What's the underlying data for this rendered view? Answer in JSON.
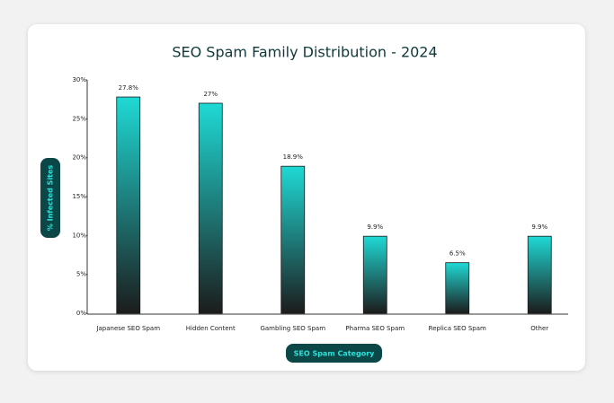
{
  "chart_data": {
    "type": "bar",
    "title": "SEO Spam Family Distribution - 2024",
    "x_label": "SEO Spam Category",
    "y_label": "% Infected Sites",
    "categories": [
      "Japanese SEO Spam",
      "Hidden Content",
      "Gambling SEO Spam",
      "Pharma SEO Spam",
      "Replica SEO Spam",
      "Other"
    ],
    "values": [
      27.8,
      27,
      18.9,
      9.9,
      6.5,
      9.9
    ],
    "value_labels": [
      "27.8%",
      "27%",
      "18.9%",
      "9.9%",
      "6.5%",
      "9.9%"
    ],
    "color": "#1fd9d5",
    "ylim": [
      0,
      30
    ],
    "yticks": [
      {
        "value": 0,
        "label": "0%"
      },
      {
        "value": 5,
        "label": "5%"
      },
      {
        "value": 10,
        "label": "10%"
      },
      {
        "value": 15,
        "label": "15%"
      },
      {
        "value": 20,
        "label": "20%"
      },
      {
        "value": 25,
        "label": "25%"
      },
      {
        "value": 30,
        "label": "30%"
      }
    ],
    "grid": false
  }
}
